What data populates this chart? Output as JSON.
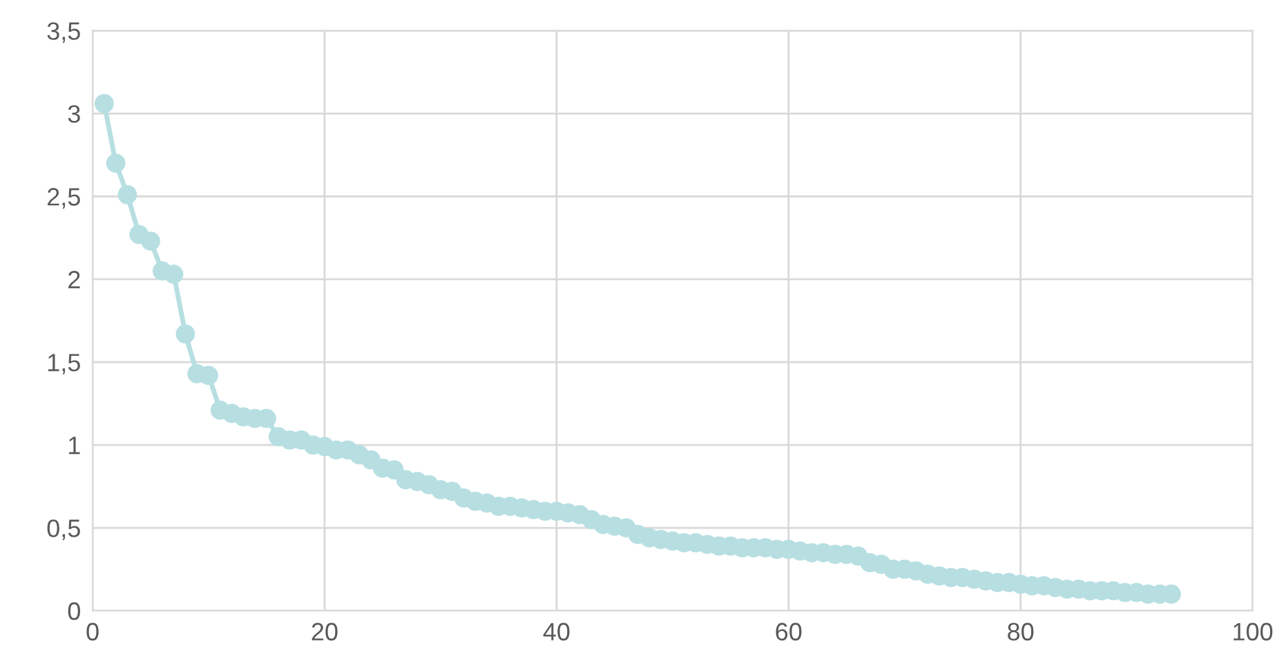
{
  "chart_data": {
    "type": "line",
    "x": [
      1,
      2,
      3,
      4,
      5,
      6,
      7,
      8,
      9,
      10,
      11,
      12,
      13,
      14,
      15,
      16,
      17,
      18,
      19,
      20,
      21,
      22,
      23,
      24,
      25,
      26,
      27,
      28,
      29,
      30,
      31,
      32,
      33,
      34,
      35,
      36,
      37,
      38,
      39,
      40,
      41,
      42,
      43,
      44,
      45,
      46,
      47,
      48,
      49,
      50,
      51,
      52,
      53,
      54,
      55,
      56,
      57,
      58,
      59,
      60,
      61,
      62,
      63,
      64,
      65,
      66,
      67,
      68,
      69,
      70,
      71,
      72,
      73,
      74,
      75,
      76,
      77,
      78,
      79,
      80,
      81,
      82,
      83,
      84,
      85,
      86,
      87,
      88,
      89,
      90,
      91,
      92,
      93
    ],
    "series": [
      {
        "color": "#b7dfe2",
        "values": [
          3.06,
          2.7,
          2.51,
          2.27,
          2.23,
          2.05,
          2.03,
          1.67,
          1.43,
          1.42,
          1.21,
          1.19,
          1.17,
          1.16,
          1.16,
          1.05,
          1.03,
          1.03,
          1.0,
          0.99,
          0.97,
          0.97,
          0.94,
          0.91,
          0.86,
          0.85,
          0.79,
          0.78,
          0.76,
          0.73,
          0.72,
          0.68,
          0.66,
          0.65,
          0.63,
          0.63,
          0.62,
          0.61,
          0.6,
          0.6,
          0.59,
          0.58,
          0.55,
          0.52,
          0.51,
          0.5,
          0.46,
          0.44,
          0.43,
          0.42,
          0.41,
          0.41,
          0.4,
          0.39,
          0.39,
          0.38,
          0.38,
          0.38,
          0.37,
          0.37,
          0.36,
          0.35,
          0.35,
          0.34,
          0.34,
          0.33,
          0.29,
          0.28,
          0.25,
          0.25,
          0.24,
          0.22,
          0.21,
          0.2,
          0.2,
          0.19,
          0.18,
          0.17,
          0.17,
          0.16,
          0.15,
          0.15,
          0.14,
          0.13,
          0.13,
          0.12,
          0.12,
          0.12,
          0.11,
          0.11,
          0.1,
          0.1,
          0.1
        ]
      }
    ],
    "xlim": [
      0,
      100
    ],
    "xticks": [
      0,
      20,
      40,
      60,
      80,
      100
    ],
    "ylim": [
      0,
      3.5
    ],
    "yticks": [
      0,
      {
        "value": 0.5,
        "label": "0,5"
      },
      1,
      {
        "value": 1.5,
        "label": "1,5"
      },
      2,
      {
        "value": 2.5,
        "label": "2,5"
      },
      3,
      {
        "value": 3.5,
        "label": "3,5"
      }
    ],
    "grid": true,
    "marker": "circle",
    "line_style": "solid",
    "legend": false
  }
}
